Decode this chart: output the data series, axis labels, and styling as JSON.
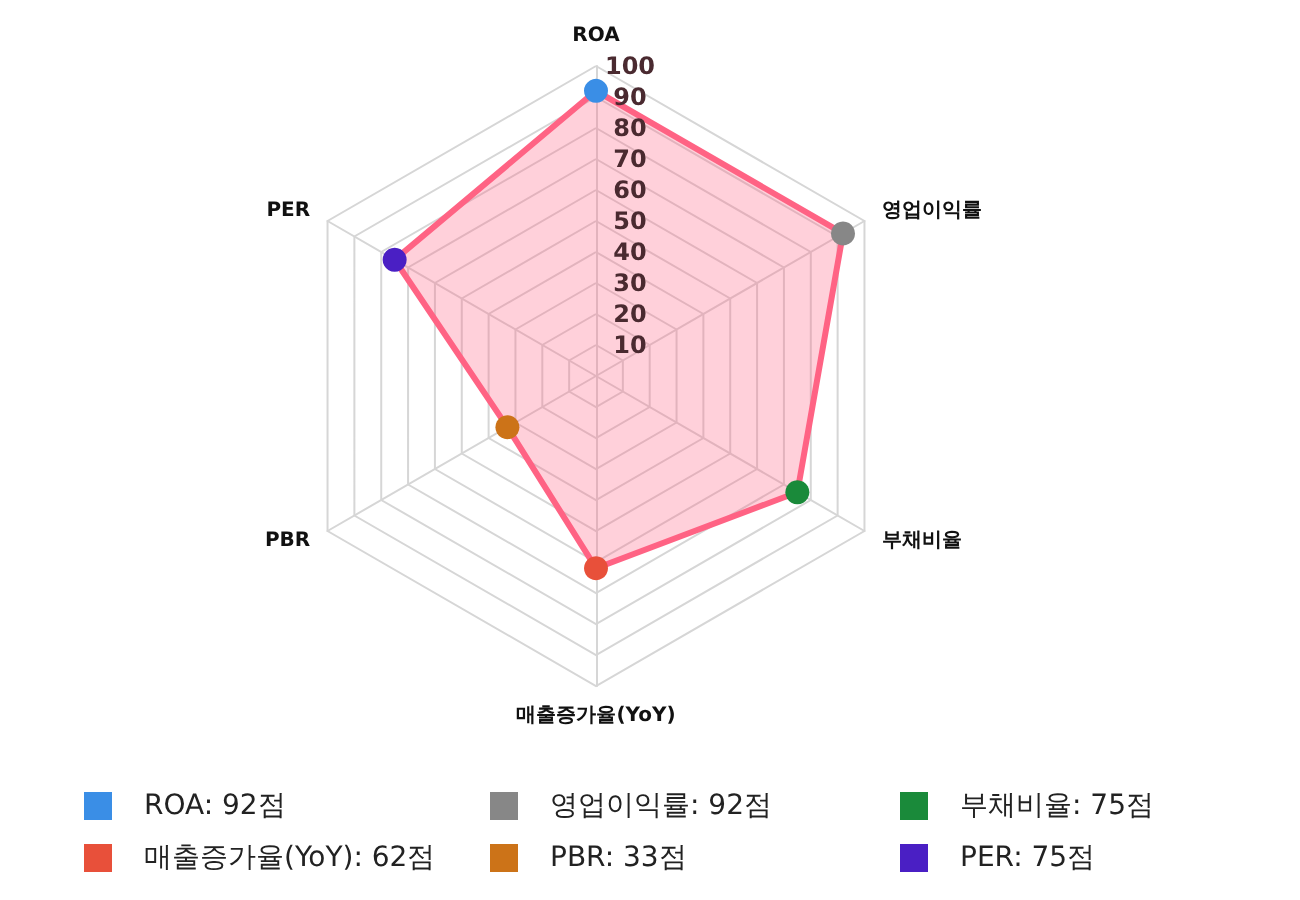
{
  "chart_data": {
    "type": "radar",
    "categories": [
      "ROA",
      "영업이익률",
      "부채비율",
      "매출증가율(YoY)",
      "PBR",
      "PER"
    ],
    "series": [
      {
        "color": "#ff6384",
        "colors": [
          "#3a8ee6",
          "#878787",
          "#1a8a3a",
          "#e8503a",
          "#cc7318",
          "#4a1fc4"
        ],
        "values": [
          92,
          92,
          75,
          62,
          33,
          75
        ]
      }
    ],
    "annotations": [
      "ROA: 92점",
      "영업이익률: 92점",
      "부채비율: 75점",
      "매출증가율(YoY): 62점",
      "PBR: 33점",
      "PER: 75점"
    ],
    "ylim": [
      0,
      100
    ],
    "yticks": [
      10,
      20,
      30,
      40,
      50,
      60,
      70,
      80,
      90,
      100
    ],
    "grid": true,
    "marker": "circle"
  }
}
